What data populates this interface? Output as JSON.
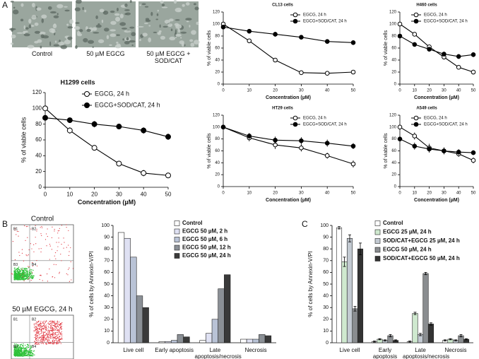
{
  "figure": {
    "panel_labels": [
      "A",
      "B",
      "C"
    ],
    "micrograph_captions": [
      "Control",
      "50 µM EGCG",
      "50 µM EGCG + SOD/CAT"
    ],
    "flow_titles": [
      "Control",
      "50 µM EGCG, 24 h"
    ],
    "flow_quadrants": [
      "B1",
      "B2",
      "B3",
      "B4"
    ]
  },
  "chart_data": [
    {
      "type": "line",
      "title": "H1299 cells",
      "xlabel": "Concentration (µM)",
      "ylabel": "% of viable cells",
      "x": [
        0,
        10,
        20,
        30,
        40,
        50
      ],
      "xlim": [
        0,
        50
      ],
      "xticks": [
        0,
        10,
        20,
        30,
        40,
        50
      ],
      "ylim": [
        0,
        120
      ],
      "yticks": [
        0,
        20,
        40,
        60,
        80,
        100,
        120
      ],
      "series": [
        {
          "name": "EGCG, 24 h",
          "color": "#000000",
          "marker": "open",
          "values": [
            100,
            72,
            50,
            30,
            18,
            15
          ],
          "errors": [
            3,
            4,
            3,
            3,
            4,
            3
          ]
        },
        {
          "name": "EGCG+SOD/CAT, 24 h",
          "color": "#000000",
          "marker": "filled",
          "values": [
            88,
            85,
            80,
            77,
            72,
            64
          ],
          "errors": [
            3,
            3,
            4,
            3,
            4,
            4
          ]
        }
      ]
    },
    {
      "type": "line",
      "title": "CL13 cells",
      "xlabel": "Concentration (µM)",
      "ylabel": "% of viable cells",
      "x": [
        0,
        10,
        20,
        30,
        40,
        50
      ],
      "xlim": [
        0,
        50
      ],
      "xticks": [
        0,
        10,
        20,
        30,
        40,
        50
      ],
      "ylim": [
        0,
        120
      ],
      "yticks": [
        0,
        20,
        40,
        60,
        80,
        100,
        120
      ],
      "series": [
        {
          "name": "EGCG, 24 h",
          "color": "#000000",
          "marker": "open",
          "values": [
            100,
            72,
            40,
            19,
            18,
            20
          ],
          "errors": [
            2,
            3,
            2,
            3,
            3,
            3
          ]
        },
        {
          "name": "EGCG+SOD/CAT, 24 h",
          "color": "#000000",
          "marker": "filled",
          "values": [
            95,
            88,
            83,
            78,
            71,
            69
          ],
          "errors": [
            2,
            3,
            4,
            3,
            3,
            2
          ]
        }
      ]
    },
    {
      "type": "line",
      "title": "H460 cells",
      "xlabel": "Concentration (µM)",
      "ylabel": "% of viable cells",
      "x": [
        0,
        10,
        20,
        30,
        40,
        50
      ],
      "xlim": [
        0,
        50
      ],
      "xticks": [
        0,
        10,
        20,
        30,
        40,
        50
      ],
      "ylim": [
        0,
        120
      ],
      "yticks": [
        0,
        20,
        40,
        60,
        80,
        100,
        120
      ],
      "series": [
        {
          "name": "EGCG, 24 h",
          "color": "#000000",
          "marker": "open",
          "values": [
            100,
            83,
            62,
            45,
            28,
            20
          ],
          "errors": [
            2,
            3,
            3,
            4,
            3,
            4
          ]
        },
        {
          "name": "EGCG+SOD/CAT, 24 h",
          "color": "#000000",
          "marker": "filled",
          "values": [
            80,
            66,
            58,
            50,
            46,
            49
          ],
          "errors": [
            3,
            3,
            3,
            4,
            4,
            4
          ]
        }
      ]
    },
    {
      "type": "line",
      "title": "HT29 cells",
      "xlabel": "Concentration (µM)",
      "ylabel": "% of viable cells",
      "x": [
        0,
        10,
        20,
        30,
        40,
        50
      ],
      "xlim": [
        0,
        50
      ],
      "xticks": [
        0,
        10,
        20,
        30,
        40,
        50
      ],
      "ylim": [
        0,
        120
      ],
      "yticks": [
        0,
        20,
        40,
        60,
        80,
        100,
        120
      ],
      "series": [
        {
          "name": "EGCG, 24 h",
          "color": "#000000",
          "marker": "open",
          "values": [
            100,
            82,
            70,
            65,
            52,
            38
          ],
          "errors": [
            3,
            6,
            7,
            6,
            5,
            6
          ]
        },
        {
          "name": "EGCG+SOD/CAT, 24 h",
          "color": "#000000",
          "marker": "filled",
          "values": [
            100,
            85,
            78,
            77,
            73,
            68
          ],
          "errors": [
            3,
            5,
            6,
            6,
            6,
            5
          ]
        }
      ]
    },
    {
      "type": "line",
      "title": "A549 cells",
      "xlabel": "Concentration (µM)",
      "ylabel": "% of viable cells",
      "x": [
        0,
        10,
        20,
        30,
        40,
        50
      ],
      "xlim": [
        0,
        50
      ],
      "xticks": [
        0,
        10,
        20,
        30,
        40,
        50
      ],
      "ylim": [
        0,
        120
      ],
      "yticks": [
        0,
        20,
        40,
        60,
        80,
        100,
        120
      ],
      "series": [
        {
          "name": "EGCG, 24 h",
          "color": "#000000",
          "marker": "open",
          "values": [
            100,
            85,
            65,
            60,
            55,
            44
          ],
          "errors": [
            3,
            6,
            7,
            6,
            5,
            5
          ]
        },
        {
          "name": "EGCG+SOD/CAT, 24 h",
          "color": "#000000",
          "marker": "filled",
          "values": [
            80,
            68,
            63,
            60,
            58,
            57
          ],
          "errors": [
            4,
            6,
            6,
            5,
            5,
            4
          ]
        }
      ]
    },
    {
      "type": "bar",
      "ylabel": "% of cells by Annexin-V/PI",
      "categories": [
        "Live cell",
        "Early apoptosis",
        "Late apoptosis/necrosis",
        "Necrosis"
      ],
      "ylim": [
        0,
        100
      ],
      "yticks": [
        0,
        10,
        20,
        30,
        40,
        50,
        60,
        70,
        80,
        90,
        100
      ],
      "series": [
        {
          "name": "Control",
          "color": "#ffffff",
          "values": [
            94,
            1,
            2,
            3
          ]
        },
        {
          "name": "EGCG 50 µM, 2 h",
          "color": "#dfe1f3",
          "values": [
            89,
            1,
            8,
            3
          ]
        },
        {
          "name": "EGCG 50 µM, 6 h",
          "color": "#b9c3d6",
          "values": [
            73,
            2,
            20,
            3
          ]
        },
        {
          "name": "EGCG 50 µM, 12 h",
          "color": "#8b9096",
          "values": [
            40,
            7,
            46,
            7
          ]
        },
        {
          "name": "EGCG 50 µM, 24 h",
          "color": "#3a3a3a",
          "values": [
            30,
            5,
            58,
            6
          ]
        }
      ]
    },
    {
      "type": "bar",
      "ylabel": "% of cells by Annexin-V/PI",
      "categories": [
        "Live cell",
        "Early apoptosis",
        "Late apoptosis/necrosis",
        "Necrosis"
      ],
      "ylim": [
        0,
        100
      ],
      "yticks": [
        0,
        10,
        20,
        30,
        40,
        50,
        60,
        70,
        80,
        90,
        100
      ],
      "series": [
        {
          "name": "Control",
          "color": "#ffffff",
          "values": [
            98,
            1,
            1,
            2
          ],
          "errors": [
            1,
            0.5,
            0.5,
            0.5
          ]
        },
        {
          "name": "EGCG 25 µM, 24 h",
          "color": "#cfe9cf",
          "values": [
            69,
            3,
            25,
            3
          ],
          "errors": [
            4,
            0.5,
            1,
            0.5
          ]
        },
        {
          "name": "SOD/CAT+EGCG 25 µM, 24 h",
          "color": "#c3cad2",
          "values": [
            89,
            2,
            7,
            2
          ],
          "errors": [
            3,
            0.5,
            1,
            0.5
          ]
        },
        {
          "name": "EGCG 50 µM, 24 h",
          "color": "#8a8d90",
          "values": [
            29,
            6,
            59,
            6
          ],
          "errors": [
            2,
            1,
            1,
            1
          ]
        },
        {
          "name": "SOD/CAT+EGCG 50 µM, 24 h",
          "color": "#333333",
          "values": [
            80,
            2,
            16,
            3
          ],
          "errors": [
            5,
            0.5,
            1,
            0.5
          ]
        }
      ]
    }
  ]
}
